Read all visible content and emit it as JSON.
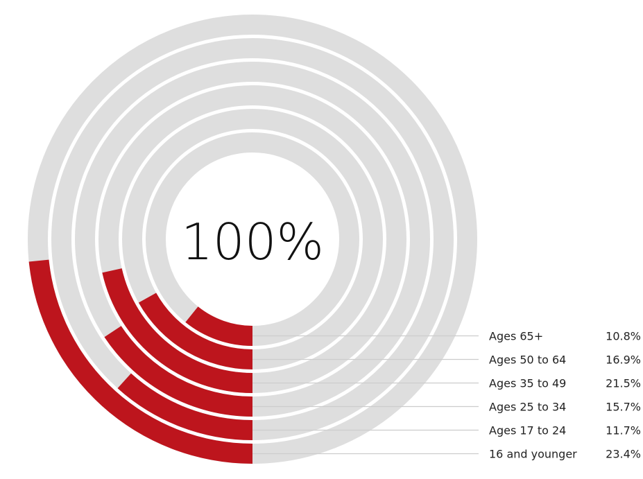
{
  "chart_data": {
    "type": "radial-bar",
    "center_label": "100%",
    "track_color": "#dedede",
    "bar_color": "#bd151d",
    "leader_line_color": "#cccccc",
    "series": [
      {
        "label": "Ages 65+",
        "value_text": "10.8%",
        "value": 10.8
      },
      {
        "label": "Ages 50 to 64",
        "value_text": "16.9%",
        "value": 16.9
      },
      {
        "label": "Ages 35 to 49",
        "value_text": "21.5%",
        "value": 21.5
      },
      {
        "label": "Ages 25 to 34",
        "value_text": "15.7%",
        "value": 15.7
      },
      {
        "label": "Ages 17 to 24",
        "value_text": "11.7%",
        "value": 11.7
      },
      {
        "label": "16 and younger",
        "value_text": "23.4%",
        "value": 23.4
      }
    ]
  }
}
